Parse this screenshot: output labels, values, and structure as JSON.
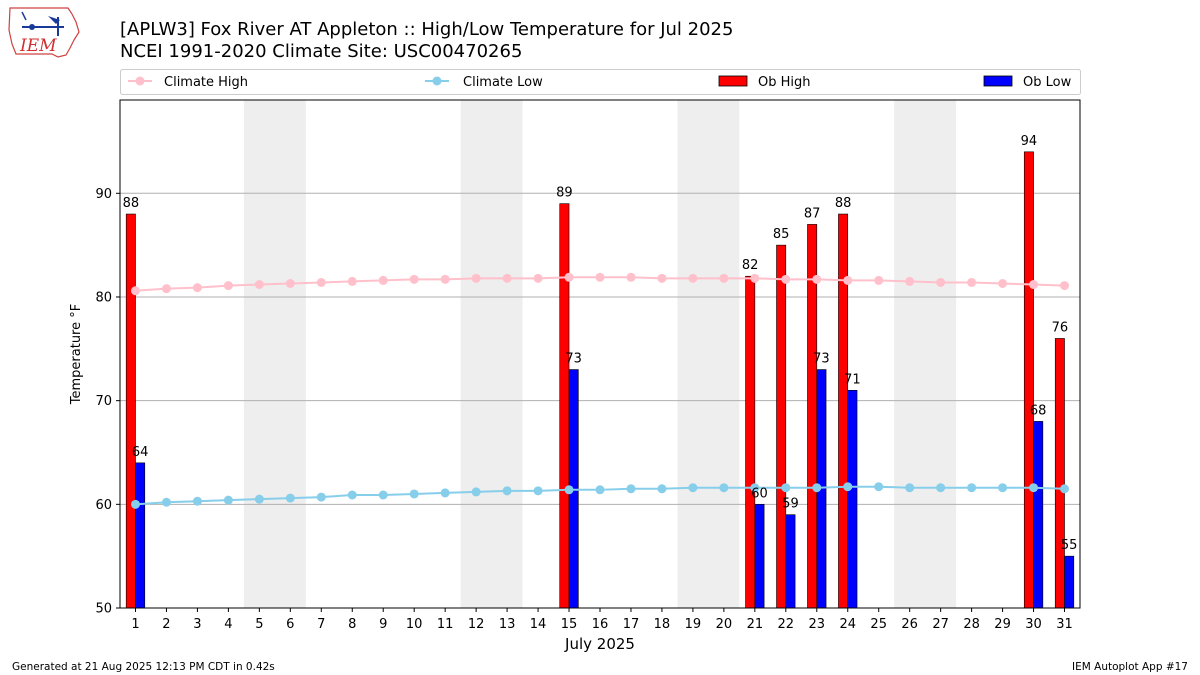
{
  "header": {
    "title_line1": "[APLW3] Fox River  AT Appleton :: High/Low Temperature for Jul 2025",
    "title_line2": "NCEI 1991-2020 Climate Site: USC00470265",
    "logo_text": "IEM"
  },
  "footer": {
    "generated": "Generated at 21 Aug 2025 12:13 PM CDT in 0.42s",
    "app": "IEM Autoplot App #17"
  },
  "colors": {
    "ob_high": "#ff0000",
    "ob_low": "#0000ff",
    "climate_high": "#ffc0cb",
    "climate_low": "#87ceeb",
    "weekend_shade": "#eeeeee",
    "grid": "#b0b0b0"
  },
  "chart_data": {
    "type": "bar",
    "xlabel": "July 2025",
    "ylabel": "Temperature °F",
    "xlim": [
      0.5,
      31.5
    ],
    "ylim": [
      50,
      99
    ],
    "yticks": [
      50,
      60,
      70,
      80,
      90
    ],
    "grid": "horizontal",
    "legend_placement": "top",
    "legend": [
      "Climate High",
      "Climate Low",
      "Ob High",
      "Ob Low"
    ],
    "categories": [
      "1",
      "2",
      "3",
      "4",
      "5",
      "6",
      "7",
      "8",
      "9",
      "10",
      "11",
      "12",
      "13",
      "14",
      "15",
      "16",
      "17",
      "18",
      "19",
      "20",
      "21",
      "22",
      "23",
      "24",
      "25",
      "26",
      "27",
      "28",
      "29",
      "30",
      "31"
    ],
    "shaded_ranges": [
      [
        5,
        6
      ],
      [
        12,
        13
      ],
      [
        19,
        20
      ],
      [
        26,
        27
      ]
    ],
    "series": [
      {
        "name": "Climate High",
        "kind": "line",
        "values": [
          80.6,
          80.8,
          80.9,
          81.1,
          81.2,
          81.3,
          81.4,
          81.5,
          81.6,
          81.7,
          81.7,
          81.8,
          81.8,
          81.8,
          81.9,
          81.9,
          81.9,
          81.8,
          81.8,
          81.8,
          81.8,
          81.7,
          81.7,
          81.6,
          81.6,
          81.5,
          81.4,
          81.4,
          81.3,
          81.2,
          81.1
        ]
      },
      {
        "name": "Climate Low",
        "kind": "line",
        "values": [
          60.0,
          60.2,
          60.3,
          60.4,
          60.5,
          60.6,
          60.7,
          60.9,
          60.9,
          61.0,
          61.1,
          61.2,
          61.3,
          61.3,
          61.4,
          61.4,
          61.5,
          61.5,
          61.6,
          61.6,
          61.6,
          61.6,
          61.6,
          61.7,
          61.7,
          61.6,
          61.6,
          61.6,
          61.6,
          61.6,
          61.5
        ]
      },
      {
        "name": "Ob High",
        "kind": "bar",
        "values": [
          88,
          null,
          null,
          null,
          null,
          null,
          null,
          null,
          null,
          null,
          null,
          null,
          null,
          null,
          89,
          null,
          null,
          null,
          null,
          null,
          82,
          85,
          87,
          88,
          null,
          null,
          null,
          null,
          null,
          94,
          76
        ]
      },
      {
        "name": "Ob Low",
        "kind": "bar",
        "values": [
          64,
          null,
          null,
          null,
          null,
          null,
          null,
          null,
          null,
          null,
          null,
          null,
          null,
          null,
          73,
          null,
          null,
          null,
          null,
          null,
          60,
          59,
          73,
          71,
          null,
          null,
          null,
          null,
          null,
          68,
          55
        ]
      }
    ]
  }
}
